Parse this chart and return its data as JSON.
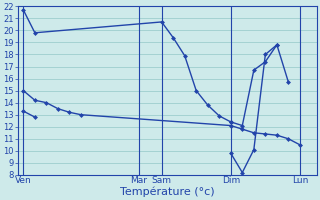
{
  "background_color": "#ceeaea",
  "grid_color": "#9ecece",
  "line_color": "#2244aa",
  "xlabel": "Température (°c)",
  "ylim": [
    8,
    22
  ],
  "yticks": [
    8,
    9,
    10,
    11,
    12,
    13,
    14,
    15,
    16,
    17,
    18,
    19,
    20,
    21,
    22
  ],
  "day_labels": [
    "Ven",
    "Mar",
    "Sam",
    "Dim",
    "Lun"
  ],
  "day_x": [
    0.0,
    10.0,
    12.0,
    18.0,
    24.0
  ],
  "xlim": [
    -0.5,
    25.5
  ],
  "series": [
    {
      "x": [
        0,
        1,
        12,
        13,
        14,
        15,
        16,
        17,
        18
      ],
      "y": [
        21.7,
        19.8,
        20.7,
        19.4,
        17.9,
        15.0,
        13.8,
        12.9,
        12.4
      ]
    },
    {
      "x": [
        18,
        19,
        20,
        21,
        22,
        23
      ],
      "y": [
        12.4,
        12.1,
        16.7,
        17.4,
        18.8,
        15.7
      ]
    },
    {
      "x": [
        0,
        1,
        2,
        3,
        4,
        5,
        18,
        19,
        20,
        21,
        22,
        23,
        24
      ],
      "y": [
        15.0,
        14.2,
        14.0,
        13.5,
        13.2,
        13.0,
        12.1,
        11.8,
        11.5,
        11.4,
        11.3,
        11.0,
        10.5
      ]
    },
    {
      "x": [
        0,
        1
      ],
      "y": [
        13.3,
        12.8
      ]
    },
    {
      "x": [
        18,
        19,
        20,
        21,
        22
      ],
      "y": [
        9.8,
        8.2,
        10.1,
        18.0,
        18.8
      ]
    }
  ],
  "vlines": [
    0,
    10,
    12,
    18,
    24
  ]
}
